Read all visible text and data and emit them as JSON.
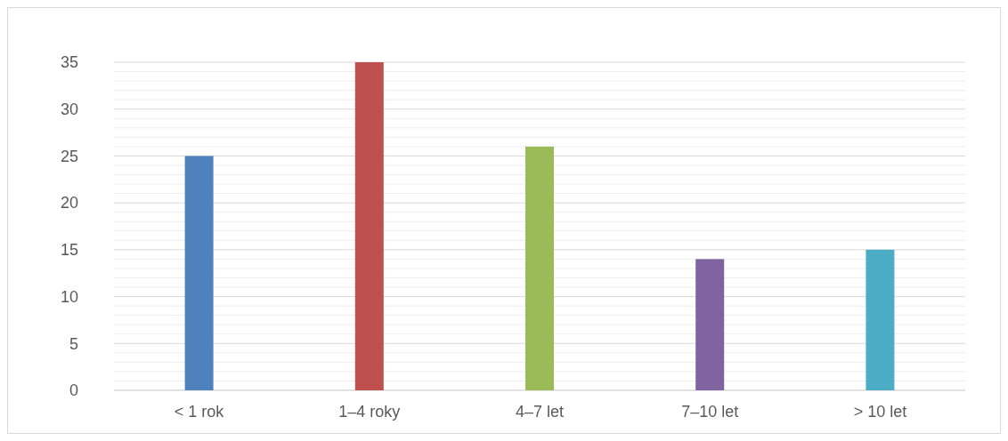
{
  "chart_data": {
    "type": "bar",
    "categories": [
      "< 1 rok",
      "1–4 roky",
      "4–7 let",
      "7–10 let",
      "> 10 let"
    ],
    "values": [
      25,
      35,
      26,
      14,
      15
    ],
    "colors": [
      "#4f81bd",
      "#c0504d",
      "#9bbb59",
      "#8064a2",
      "#4bacc6"
    ],
    "ylim": [
      0,
      35
    ],
    "yticks": [
      0,
      {
        "value": 1,
        "label": null
      },
      {
        "value": 2,
        "label": null
      },
      {
        "value": 3,
        "label": null
      },
      {
        "value": 4,
        "label": null
      },
      5,
      {
        "value": 6,
        "label": null
      },
      {
        "value": 7,
        "label": null
      },
      {
        "value": 8,
        "label": null
      },
      {
        "value": 9,
        "label": null
      },
      10,
      {
        "value": 11,
        "label": null
      },
      {
        "value": 12,
        "label": null
      },
      {
        "value": 13,
        "label": null
      },
      {
        "value": 14,
        "label": null
      },
      15,
      {
        "value": 16,
        "label": null
      },
      {
        "value": 17,
        "label": null
      },
      {
        "value": 18,
        "label": null
      },
      {
        "value": 19,
        "label": null
      },
      20,
      {
        "value": 21,
        "label": null
      },
      {
        "value": 22,
        "label": null
      },
      {
        "value": 23,
        "label": null
      },
      {
        "value": 24,
        "label": null
      },
      25,
      {
        "value": 26,
        "label": null
      },
      {
        "value": 27,
        "label": null
      },
      {
        "value": 28,
        "label": null
      },
      {
        "value": 29,
        "label": null
      },
      30,
      {
        "value": 31,
        "label": null
      },
      {
        "value": 32,
        "label": null
      },
      {
        "value": 33,
        "label": null
      },
      {
        "value": 34,
        "label": null
      },
      35
    ],
    "grid": "y"
  }
}
